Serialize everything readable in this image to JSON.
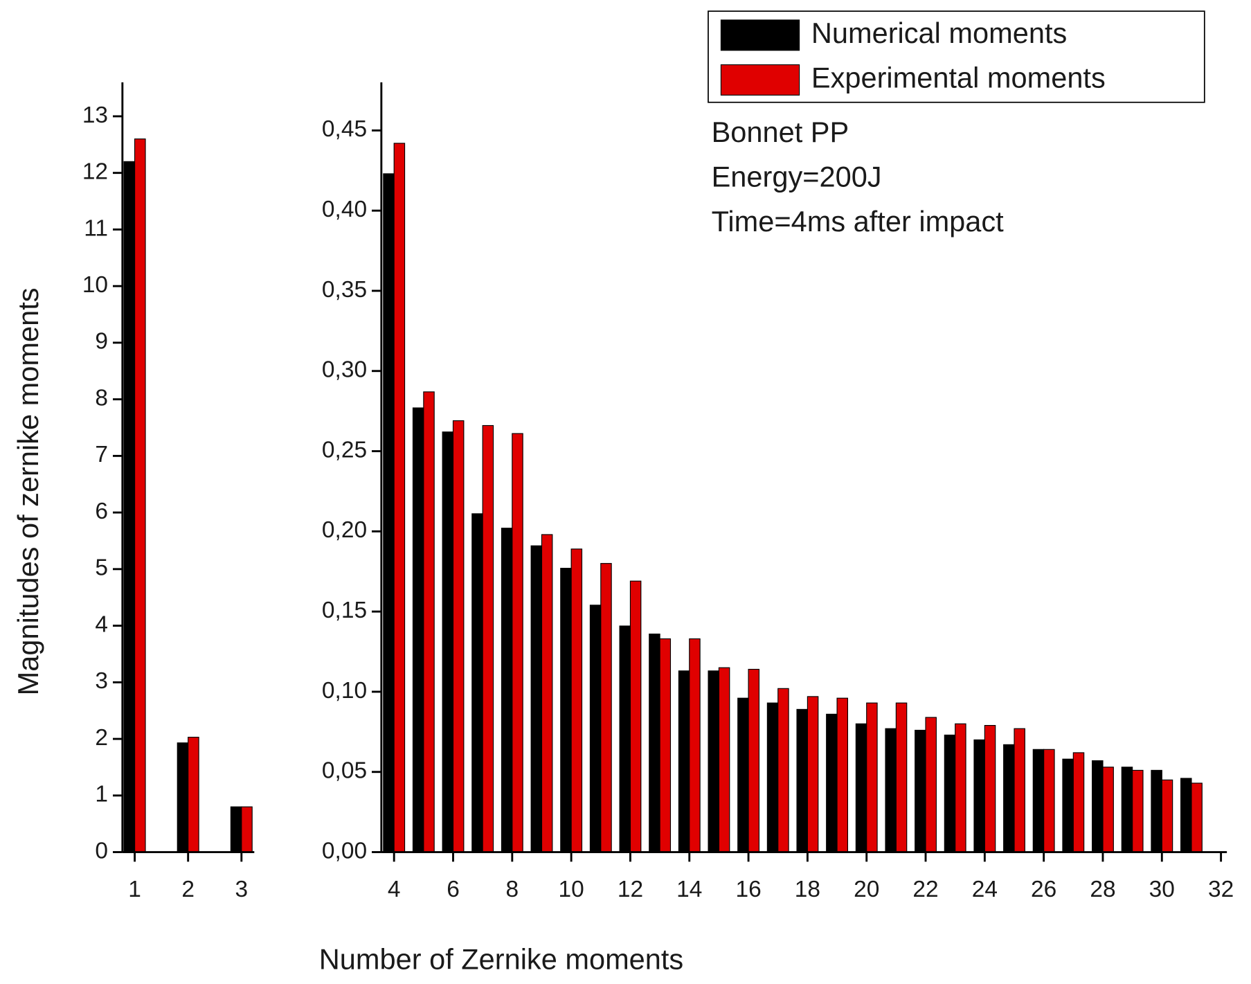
{
  "chart_data": [
    {
      "type": "bar",
      "ylabel": "Magnitudes of zernike moments",
      "xlabel": "Number of Zernike moments",
      "x": [
        1,
        2,
        3
      ],
      "xlim": [
        0.77,
        3.24
      ],
      "xticks": [
        1,
        2,
        3
      ],
      "ylim": [
        0,
        13.6
      ],
      "yticks": [
        0,
        1,
        2,
        3,
        4,
        5,
        6,
        7,
        8,
        9,
        10,
        11,
        12,
        13
      ],
      "series": [
        {
          "color": "#000000",
          "values": [
            12.2,
            1.93,
            0.8
          ]
        },
        {
          "color": "#e00000",
          "values": [
            12.6,
            2.03,
            0.8
          ]
        }
      ]
    },
    {
      "type": "bar",
      "x": [
        4,
        5,
        6,
        7,
        8,
        9,
        10,
        11,
        12,
        13,
        14,
        15,
        16,
        17,
        18,
        19,
        20,
        21,
        22,
        23,
        24,
        25,
        26,
        27,
        28,
        29,
        30,
        31
      ],
      "xlim": [
        3.57,
        32.2
      ],
      "xticks": [
        4,
        6,
        8,
        10,
        12,
        14,
        16,
        18,
        20,
        22,
        24,
        26,
        28,
        30,
        32
      ],
      "ylim": [
        0,
        0.48
      ],
      "yticks": [
        {
          "value": 0,
          "label": "0,00"
        },
        {
          "value": 0.05,
          "label": "0,05"
        },
        {
          "value": 0.1,
          "label": "0,10"
        },
        {
          "value": 0.15,
          "label": "0,15"
        },
        {
          "value": 0.2,
          "label": "0,20"
        },
        {
          "value": 0.25,
          "label": "0,25"
        },
        {
          "value": 0.3,
          "label": "0,30"
        },
        {
          "value": 0.35,
          "label": "0,35"
        },
        {
          "value": 0.4,
          "label": "0,40"
        },
        {
          "value": 0.45,
          "label": "0,45"
        }
      ],
      "annotations": [
        "Bonnet PP",
        "Energy=200J",
        "Time=4ms after impact"
      ],
      "series": [
        {
          "name": "Numerical moments",
          "color": "#000000",
          "values": [
            0.423,
            0.277,
            0.262,
            0.211,
            0.202,
            0.191,
            0.177,
            0.154,
            0.141,
            0.136,
            0.113,
            0.113,
            0.096,
            0.093,
            0.089,
            0.086,
            0.08,
            0.077,
            0.076,
            0.073,
            0.07,
            0.067,
            0.064,
            0.058,
            0.057,
            0.053,
            0.051,
            0.046
          ]
        },
        {
          "name": "Experimental moments",
          "color": "#e00000",
          "values": [
            0.442,
            0.287,
            0.269,
            0.266,
            0.261,
            0.198,
            0.189,
            0.18,
            0.169,
            0.133,
            0.133,
            0.115,
            0.114,
            0.102,
            0.097,
            0.096,
            0.093,
            0.093,
            0.084,
            0.08,
            0.079,
            0.077,
            0.064,
            0.062,
            0.053,
            0.051,
            0.045,
            0.043
          ]
        }
      ]
    }
  ]
}
